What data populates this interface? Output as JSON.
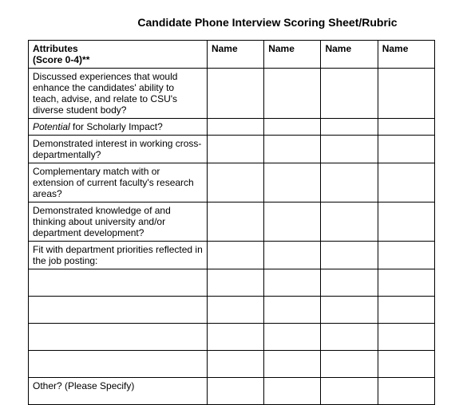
{
  "title": "Candidate Phone Interview Scoring Sheet/Rubric",
  "table": {
    "header": {
      "attr_label_line1": "Attributes",
      "attr_label_line2": "(Score 0-4)**",
      "name_cols": [
        "Name",
        "Name",
        "Name",
        "Name"
      ]
    },
    "rows": [
      "Discussed experiences that would enhance the candidates' ability to teach, advise, and relate to CSU's diverse student body?",
      "",
      "Demonstrated interest in working cross-departmentally?",
      "Complementary match with or extension of current faculty's research areas?",
      "Demonstrated knowledge of and thinking about university and/or department development?",
      "Fit with department priorities reflected in the job posting:",
      "",
      "",
      "",
      "",
      "Other? (Please Specify)"
    ],
    "row1_italic": "Potential",
    "row1_rest": " for Scholarly Impact?"
  },
  "style": {
    "background": "#ffffff",
    "border_color": "#000000",
    "text_color": "#000000",
    "title_fontsize": 14,
    "cell_fontsize": 12,
    "col_widths_pct": [
      44,
      14,
      14,
      14,
      14
    ]
  }
}
